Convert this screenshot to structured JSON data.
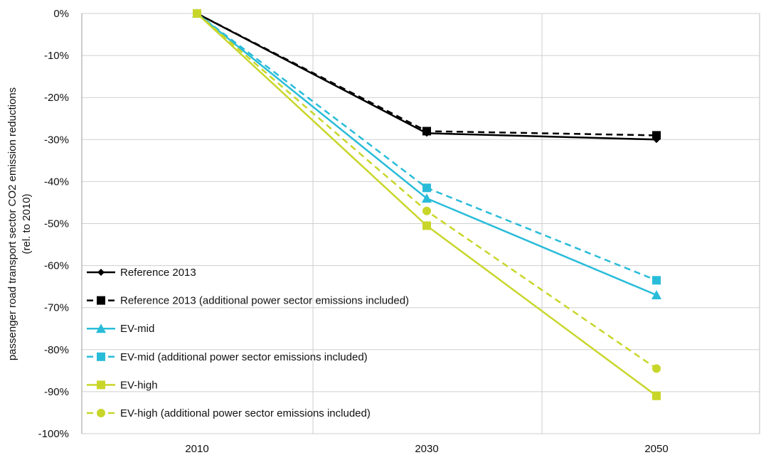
{
  "chart_data": {
    "type": "line",
    "title": "",
    "xlabel": "",
    "ylabel": "passenger road transport sector CO2 emission reductions",
    "ylabel_line2": "(rel. to 2010)",
    "categories": [
      "2010",
      "2030",
      "2050"
    ],
    "ylim": [
      -100,
      0
    ],
    "y_ticks": [
      "0%",
      "-10%",
      "-20%",
      "-30%",
      "-40%",
      "-50%",
      "-60%",
      "-70%",
      "-80%",
      "-90%",
      "-100%"
    ],
    "grid": true,
    "legend_position": "bottom-left",
    "series": [
      {
        "name": "Reference 2013",
        "values": [
          0,
          -28.5,
          -30
        ],
        "color": "#000000",
        "dashed": false,
        "marker": "diamond"
      },
      {
        "name": "Reference 2013 (additional power sector emissions included)",
        "values": [
          0,
          -28,
          -29
        ],
        "color": "#000000",
        "dashed": true,
        "marker": "square"
      },
      {
        "name": "EV-mid",
        "values": [
          0,
          -44,
          -67
        ],
        "color": "#29bcd9",
        "dashed": false,
        "marker": "triangle"
      },
      {
        "name": "EV-mid (additional power sector emissions included)",
        "values": [
          0,
          -41.5,
          -63.5
        ],
        "color": "#29bcd9",
        "dashed": true,
        "marker": "square"
      },
      {
        "name": "EV-high",
        "values": [
          0,
          -50.5,
          -91
        ],
        "color": "#c8d62a",
        "dashed": false,
        "marker": "square"
      },
      {
        "name": "EV-high (additional power sector emissions included)",
        "values": [
          0,
          -47,
          -84.5
        ],
        "color": "#c8d62a",
        "dashed": true,
        "marker": "circle"
      }
    ]
  }
}
